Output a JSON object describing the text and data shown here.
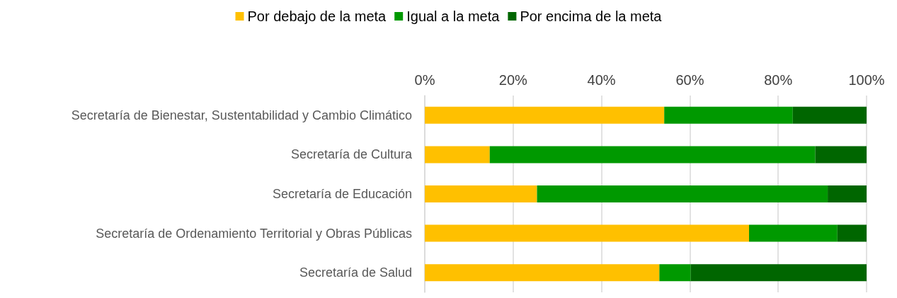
{
  "chart_data": {
    "type": "bar",
    "orientation": "horizontal",
    "stacked": true,
    "categories": [
      "Secretaría de Bienestar, Sustentabilidad y Cambio Climático",
      "Secretaría de Cultura",
      "Secretaría de Educación",
      "Secretaría de Ordenamiento Territorial y Obras Públicas",
      "Secretaría de Salud"
    ],
    "series": [
      {
        "name": "Por debajo de la meta",
        "color": "#ffc000",
        "values": [
          54.2,
          14.7,
          25.4,
          73.4,
          53.1
        ]
      },
      {
        "name": "Igual a la meta",
        "color": "#009900",
        "values": [
          29.1,
          73.7,
          65.8,
          20.0,
          7.1
        ]
      },
      {
        "name": "Por encima de la meta",
        "color": "#006600",
        "values": [
          16.7,
          11.6,
          8.8,
          6.6,
          39.8
        ]
      }
    ],
    "xlim": [
      0,
      100
    ],
    "xticks": [
      {
        "value": 0,
        "label": "0%"
      },
      {
        "value": 20,
        "label": "20%"
      },
      {
        "value": 40,
        "label": "40%"
      },
      {
        "value": 60,
        "label": "60%"
      },
      {
        "value": 80,
        "label": "80%"
      },
      {
        "value": 100,
        "label": "100%"
      }
    ],
    "grid": "x",
    "legend": "top"
  }
}
